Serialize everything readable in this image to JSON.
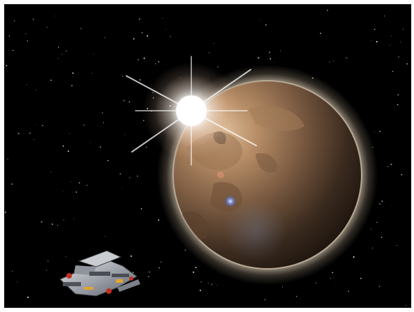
{
  "scene": {
    "subject": "space-scene",
    "elements": [
      "starfield",
      "sun-flare",
      "planet",
      "spaceship"
    ],
    "colors": {
      "border": "#ffffff",
      "space": "#000000",
      "planet_light": "#c7a17a",
      "planet_mid": "#8a6547",
      "planet_dark": "#1a120b",
      "atmosphere": "#f1dcc0",
      "flare": "#ffffff",
      "ship_hull": "#b9bcc2",
      "ship_accent": "#c0301f",
      "ship_thruster": "#e1a62e"
    }
  }
}
